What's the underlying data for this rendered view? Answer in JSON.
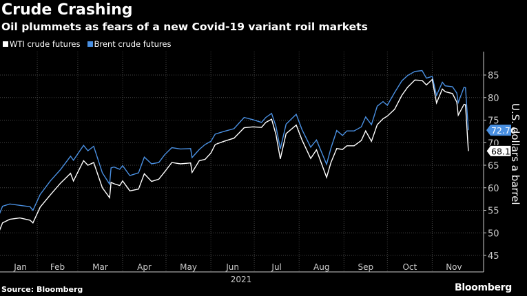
{
  "chart_data": {
    "type": "line",
    "title": "Crude Crashing",
    "subtitle": "Oil plummets as fears of a new Covid-19 variant roil markets",
    "ylabel": "U.S. dollars a barrel",
    "xlabel": "2021",
    "ylim": [
      45,
      88
    ],
    "yticks": [
      45,
      50,
      55,
      60,
      65,
      70,
      75,
      80,
      85
    ],
    "xticks": [
      "Jan",
      "Feb",
      "Mar",
      "Apr",
      "May",
      "Jun",
      "Jul",
      "Aug",
      "Sep",
      "Oct",
      "Nov"
    ],
    "grid": true,
    "legend_position": "top-left",
    "x": [
      "2021-01-04",
      "2021-01-06",
      "2021-01-08",
      "2021-01-13",
      "2021-01-20",
      "2021-01-27",
      "2021-01-29",
      "2021-02-03",
      "2021-02-10",
      "2021-02-17",
      "2021-02-24",
      "2021-02-26",
      "2021-03-05",
      "2021-03-08",
      "2021-03-12",
      "2021-03-18",
      "2021-03-23",
      "2021-03-24",
      "2021-03-26",
      "2021-03-30",
      "2021-04-01",
      "2021-04-06",
      "2021-04-12",
      "2021-04-16",
      "2021-04-21",
      "2021-04-26",
      "2021-04-30",
      "2021-05-05",
      "2021-05-11",
      "2021-05-18",
      "2021-05-19",
      "2021-05-24",
      "2021-05-28",
      "2021-06-01",
      "2021-06-04",
      "2021-06-10",
      "2021-06-17",
      "2021-06-24",
      "2021-06-30",
      "2021-07-06",
      "2021-07-09",
      "2021-07-13",
      "2021-07-16",
      "2021-07-19",
      "2021-07-23",
      "2021-07-30",
      "2021-08-03",
      "2021-08-09",
      "2021-08-13",
      "2021-08-20",
      "2021-08-23",
      "2021-08-27",
      "2021-08-31",
      "2021-09-03",
      "2021-09-08",
      "2021-09-13",
      "2021-09-16",
      "2021-09-20",
      "2021-09-24",
      "2021-09-28",
      "2021-10-01",
      "2021-10-06",
      "2021-10-11",
      "2021-10-15",
      "2021-10-20",
      "2021-10-25",
      "2021-10-28",
      "2021-11-01",
      "2021-11-04",
      "2021-11-08",
      "2021-11-10",
      "2021-11-15",
      "2021-11-18",
      "2021-11-19",
      "2021-11-23",
      "2021-11-24",
      "2021-11-26"
    ],
    "series": [
      {
        "name": "WTI crude futures",
        "color": "#ffffff",
        "last_label": "68.15",
        "values": [
          47.6,
          50.6,
          52.2,
          53.0,
          53.3,
          52.8,
          52.2,
          55.7,
          58.4,
          61.0,
          63.2,
          61.5,
          66.0,
          65.0,
          65.6,
          60.0,
          57.8,
          61.2,
          60.9,
          60.5,
          61.5,
          59.3,
          59.7,
          63.1,
          61.4,
          61.9,
          63.5,
          65.6,
          65.3,
          65.5,
          63.4,
          66.0,
          66.3,
          67.7,
          69.6,
          70.3,
          71.0,
          73.3,
          73.5,
          73.4,
          74.5,
          75.2,
          71.8,
          66.4,
          72.0,
          73.9,
          70.6,
          66.5,
          68.4,
          62.3,
          65.6,
          68.7,
          68.5,
          69.3,
          69.3,
          70.5,
          72.6,
          70.3,
          74.0,
          75.3,
          75.9,
          77.4,
          80.5,
          82.3,
          83.9,
          83.8,
          82.8,
          84.0,
          78.8,
          81.9,
          81.3,
          80.9,
          79.0,
          76.1,
          78.5,
          78.4,
          68.15
        ]
      },
      {
        "name": "Brent crude futures",
        "color": "#4a90e2",
        "last_label": "72.76",
        "values": [
          51.1,
          54.3,
          55.9,
          56.4,
          56.1,
          55.8,
          55.0,
          58.5,
          61.5,
          64.0,
          67.0,
          66.1,
          69.4,
          68.2,
          69.2,
          63.3,
          60.8,
          64.4,
          64.6,
          64.1,
          64.9,
          62.7,
          63.3,
          66.8,
          65.3,
          65.6,
          67.3,
          68.9,
          68.6,
          68.7,
          66.7,
          68.5,
          69.6,
          70.3,
          71.9,
          72.5,
          73.1,
          75.6,
          75.1,
          74.5,
          75.6,
          76.5,
          73.6,
          68.6,
          74.1,
          76.3,
          72.9,
          69.0,
          70.6,
          65.2,
          68.8,
          72.7,
          71.6,
          72.6,
          72.6,
          73.5,
          75.7,
          74.0,
          78.1,
          79.1,
          78.3,
          81.1,
          83.7,
          84.9,
          85.8,
          86.0,
          84.3,
          84.7,
          80.5,
          83.4,
          82.6,
          82.4,
          81.0,
          78.9,
          82.3,
          82.2,
          72.76
        ]
      }
    ]
  },
  "source": "Source: Bloomberg",
  "logo": "Bloomberg"
}
